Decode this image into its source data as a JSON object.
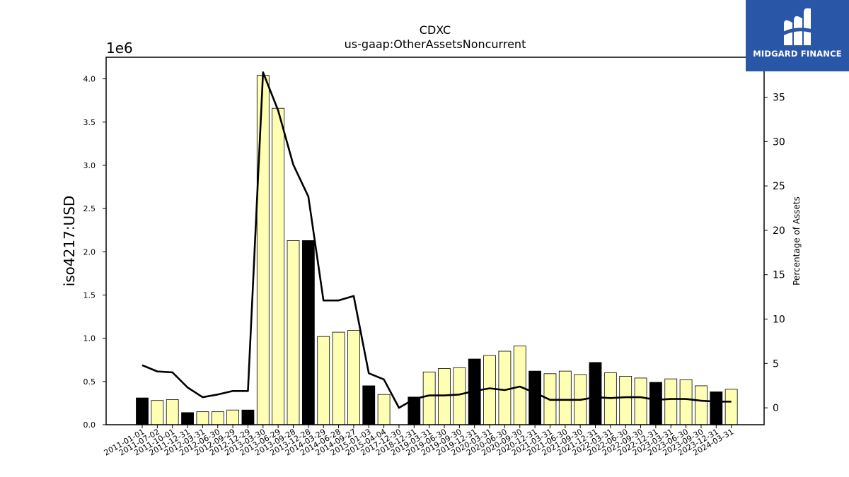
{
  "brand": {
    "name": "MIDGARD FINANCE",
    "color": "#2a56a8",
    "icon": "midgard-logo-icon"
  },
  "chart_data": {
    "type": "bar",
    "title": "CDXC",
    "subtitle": "us-gaap:OtherAssetsNoncurrent",
    "ylabel": "iso4217:USD",
    "y_scale_label": "1e6",
    "y2label": "Percentage of Assets",
    "ylim": [
      0,
      4.25
    ],
    "y2lim": [
      -1.9,
      39.5
    ],
    "yticks": [
      "0.0",
      "0.5",
      "1.0",
      "1.5",
      "2.0",
      "2.5",
      "3.0",
      "3.5",
      "4.0"
    ],
    "y2ticks": [
      "0",
      "5",
      "10",
      "15",
      "20",
      "25",
      "30",
      "35"
    ],
    "grid": false,
    "colors": {
      "bar_default": "#ffffb3",
      "bar_highlight": "#000000",
      "line": "#000000"
    },
    "categories": [
      "2011-01-01",
      "2011-07-02",
      "2011-10-01",
      "2011-12-31",
      "2012-03-31",
      "2012-06-30",
      "2012-09-29",
      "2012-12-29",
      "2013-03-30",
      "2013-06-29",
      "2013-09-28",
      "2013-12-28",
      "2014-03-29",
      "2014-06-28",
      "2014-09-27",
      "2015-01-03",
      "2015-04-04",
      "2017-12-30",
      "2018-12-31",
      "2019-03-31",
      "2019-06-30",
      "2019-09-30",
      "2019-12-31",
      "2020-03-31",
      "2020-06-30",
      "2020-09-30",
      "2020-12-31",
      "2021-03-31",
      "2021-06-30",
      "2021-09-30",
      "2021-12-31",
      "2022-03-31",
      "2022-06-30",
      "2022-09-30",
      "2022-12-31",
      "2023-03-31",
      "2023-06-30",
      "2023-09-30",
      "2023-12-31",
      "2024-03-31"
    ],
    "series": [
      {
        "name": "",
        "axis": "left",
        "type": "bar",
        "values": [
          0.31,
          0.28,
          0.29,
          0.14,
          0.15,
          0.15,
          0.17,
          0.17,
          4.04,
          3.66,
          2.13,
          2.13,
          1.02,
          1.07,
          1.09,
          0.45,
          0.35,
          0.0,
          0.32,
          0.61,
          0.65,
          0.66,
          0.76,
          0.8,
          0.85,
          0.91,
          0.62,
          0.59,
          0.62,
          0.58,
          0.72,
          0.6,
          0.56,
          0.54,
          0.49,
          0.53,
          0.52,
          0.45,
          0.38,
          0.41
        ],
        "highlight": [
          true,
          false,
          false,
          true,
          false,
          false,
          false,
          true,
          false,
          false,
          false,
          true,
          false,
          false,
          false,
          true,
          false,
          false,
          true,
          false,
          false,
          false,
          true,
          false,
          false,
          false,
          true,
          false,
          false,
          false,
          true,
          false,
          false,
          false,
          true,
          false,
          false,
          false,
          true,
          false
        ]
      },
      {
        "name": "",
        "axis": "right",
        "type": "line",
        "values": [
          4.8,
          4.1,
          4.0,
          2.3,
          1.2,
          1.5,
          1.9,
          1.9,
          37.8,
          33.5,
          27.4,
          23.8,
          12.1,
          12.1,
          12.6,
          3.9,
          3.2,
          0.0,
          1.0,
          1.4,
          1.4,
          1.5,
          1.9,
          2.2,
          2.0,
          2.4,
          1.7,
          0.9,
          0.9,
          0.9,
          1.2,
          1.1,
          1.2,
          1.2,
          0.9,
          1.0,
          1.0,
          0.8,
          0.7,
          0.7
        ]
      }
    ]
  }
}
